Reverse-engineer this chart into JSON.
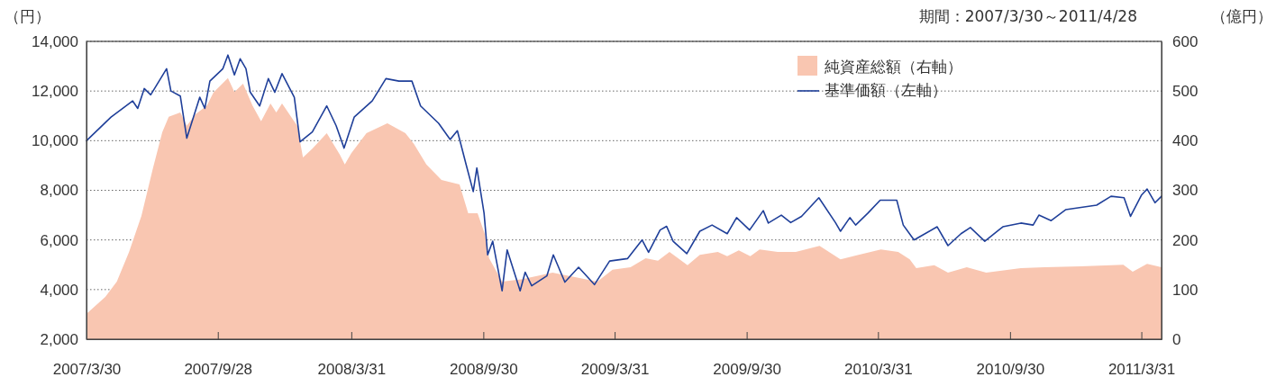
{
  "chart_data": {
    "type": "line",
    "subtitle": "期間：2007/3/30～2011/4/28",
    "ylabel": "（円）",
    "y2label": "（億円）",
    "legend": "top right",
    "grid": "y",
    "xlim": [
      "2007-03-30",
      "2011-04-28"
    ],
    "xticks": [
      {
        "value": "2007-03-30",
        "label": "2007/3/30"
      },
      {
        "value": "2007-09-28",
        "label": "2007/9/28"
      },
      {
        "value": "2008-03-31",
        "label": "2008/3/31"
      },
      {
        "value": "2008-09-30",
        "label": "2008/9/30"
      },
      {
        "value": "2009-03-31",
        "label": "2009/3/31"
      },
      {
        "value": "2009-09-30",
        "label": "2009/9/30"
      },
      {
        "value": "2010-03-31",
        "label": "2010/3/31"
      },
      {
        "value": "2010-09-30",
        "label": "2010/9/30"
      },
      {
        "value": "2011-03-31",
        "label": "2011/3/31"
      }
    ],
    "ylim": [
      2000,
      14000
    ],
    "yticks": [
      {
        "value": 2000,
        "label": "2,000"
      },
      {
        "value": 4000,
        "label": "4,000"
      },
      {
        "value": 6000,
        "label": "6,000"
      },
      {
        "value": 8000,
        "label": "8,000"
      },
      {
        "value": 10000,
        "label": "10,000"
      },
      {
        "value": 12000,
        "label": "12,000"
      },
      {
        "value": 14000,
        "label": "14,000"
      }
    ],
    "y2lim": [
      0,
      600
    ],
    "y2ticks": [
      0,
      100,
      200,
      300,
      400,
      500,
      600
    ],
    "series": [
      {
        "name": "純資産総額（右軸）",
        "type": "area",
        "axis": "y2",
        "color": "#f9c6b1",
        "x": [
          "2007-03-30",
          "2007-04-25",
          "2007-05-11",
          "2007-05-28",
          "2007-06-14",
          "2007-06-30",
          "2007-07-13",
          "2007-07-22",
          "2007-08-07",
          "2007-08-16",
          "2007-08-28",
          "2007-09-13",
          "2007-09-22",
          "2007-10-12",
          "2007-10-21",
          "2007-11-02",
          "2007-11-15",
          "2007-11-27",
          "2007-12-10",
          "2007-12-18",
          "2007-12-26",
          "2008-01-16",
          "2008-01-24",
          "2008-02-06",
          "2008-02-26",
          "2008-03-15",
          "2008-03-22",
          "2008-03-31",
          "2008-04-21",
          "2008-05-20",
          "2008-06-14",
          "2008-06-26",
          "2008-07-13",
          "2008-08-03",
          "2008-08-28",
          "2008-09-09",
          "2008-09-22",
          "2008-10-02",
          "2008-10-08",
          "2008-10-26",
          "2008-11-23",
          "2009-01-04",
          "2009-03-07",
          "2009-03-28",
          "2009-04-22",
          "2009-05-13",
          "2009-05-30",
          "2009-06-15",
          "2009-07-10",
          "2009-07-27",
          "2009-08-21",
          "2009-09-03",
          "2009-09-19",
          "2009-10-05",
          "2009-10-18",
          "2009-11-12",
          "2009-12-07",
          "2010-01-09",
          "2010-02-07",
          "2010-03-04",
          "2010-04-04",
          "2010-04-28",
          "2010-05-14",
          "2010-05-23",
          "2010-06-17",
          "2010-07-06",
          "2010-08-01",
          "2010-08-28",
          "2010-10-15",
          "2010-11-17",
          "2011-01-06",
          "2011-03-06",
          "2011-03-19",
          "2011-04-08",
          "2011-04-28"
        ],
        "values": [
          51,
          85,
          116,
          176,
          248,
          344,
          417,
          448,
          457,
          430,
          453,
          471,
          497,
          526,
          498,
          515,
          471,
          439,
          475,
          457,
          475,
          430,
          366,
          384,
          415,
          372,
          352,
          375,
          415,
          435,
          415,
          393,
          352,
          321,
          312,
          254,
          254,
          212,
          163,
          116,
          121,
          134,
          116,
          140,
          145,
          163,
          158,
          176,
          149,
          170,
          176,
          167,
          179,
          167,
          181,
          176,
          176,
          188,
          161,
          170,
          181,
          176,
          161,
          143,
          149,
          134,
          145,
          134,
          143,
          145,
          147,
          150,
          136,
          152,
          145
        ]
      },
      {
        "name": "基準価額（左軸）",
        "color": "#1f3f99",
        "x": [
          "2007-03-30",
          "2007-05-03",
          "2007-06-02",
          "2007-06-09",
          "2007-06-18",
          "2007-06-27",
          "2007-07-19",
          "2007-07-25",
          "2007-08-07",
          "2007-08-16",
          "2007-09-03",
          "2007-09-10",
          "2007-09-17",
          "2007-10-05",
          "2007-10-12",
          "2007-10-21",
          "2007-10-29",
          "2007-11-06",
          "2007-11-12",
          "2007-11-25",
          "2007-12-07",
          "2007-12-16",
          "2007-12-26",
          "2008-01-12",
          "2008-01-20",
          "2008-02-06",
          "2008-02-26",
          "2008-03-10",
          "2008-03-21",
          "2008-04-04",
          "2008-04-29",
          "2008-05-18",
          "2008-06-05",
          "2008-06-23",
          "2008-07-05",
          "2008-07-30",
          "2008-08-15",
          "2008-08-25",
          "2008-09-06",
          "2008-09-16",
          "2008-09-21",
          "2008-10-01",
          "2008-10-06",
          "2008-10-13",
          "2008-10-26",
          "2008-11-02",
          "2008-11-20",
          "2008-11-27",
          "2008-12-06",
          "2008-12-27",
          "2009-01-05",
          "2009-01-21",
          "2009-02-09",
          "2009-03-03",
          "2009-03-24",
          "2009-04-18",
          "2009-05-08",
          "2009-05-17",
          "2009-06-02",
          "2009-06-11",
          "2009-06-20",
          "2009-07-09",
          "2009-07-27",
          "2009-08-13",
          "2009-09-03",
          "2009-09-16",
          "2009-10-04",
          "2009-10-23",
          "2009-10-30",
          "2009-11-17",
          "2009-11-30",
          "2009-12-15",
          "2010-01-08",
          "2010-01-31",
          "2010-02-07",
          "2010-02-20",
          "2010-02-28",
          "2010-03-17",
          "2010-04-03",
          "2010-04-26",
          "2010-05-05",
          "2010-05-20",
          "2010-06-21",
          "2010-07-06",
          "2010-07-24",
          "2010-08-06",
          "2010-08-26",
          "2010-09-20",
          "2010-10-15",
          "2010-11-01",
          "2010-11-09",
          "2010-11-26",
          "2010-12-16",
          "2011-01-28",
          "2011-02-17",
          "2011-03-07",
          "2011-03-16",
          "2011-03-31",
          "2011-04-08",
          "2011-04-19",
          "2011-04-28"
        ],
        "values": [
          10000,
          10950,
          11600,
          11300,
          12100,
          11850,
          12900,
          12000,
          11800,
          10100,
          11750,
          11300,
          12400,
          12900,
          13450,
          12650,
          13300,
          12900,
          11950,
          11400,
          12500,
          11950,
          12700,
          11750,
          9950,
          10350,
          11400,
          10600,
          9700,
          10950,
          11600,
          12500,
          12400,
          12400,
          11400,
          10700,
          10050,
          10400,
          9050,
          7950,
          8900,
          7080,
          5400,
          5950,
          3950,
          5600,
          3950,
          4700,
          4150,
          4550,
          5400,
          4300,
          4900,
          4200,
          5150,
          5250,
          6000,
          5500,
          6400,
          6550,
          5950,
          5450,
          6350,
          6600,
          6250,
          6900,
          6400,
          7180,
          6680,
          7000,
          6700,
          6950,
          7700,
          6700,
          6350,
          6900,
          6600,
          7080,
          7600,
          7600,
          6600,
          6000,
          6530,
          5770,
          6250,
          6500,
          5950,
          6530,
          6680,
          6600,
          7000,
          6780,
          7220,
          7400,
          7760,
          7700,
          6950,
          7800,
          8050,
          7500,
          7760
        ]
      }
    ]
  }
}
